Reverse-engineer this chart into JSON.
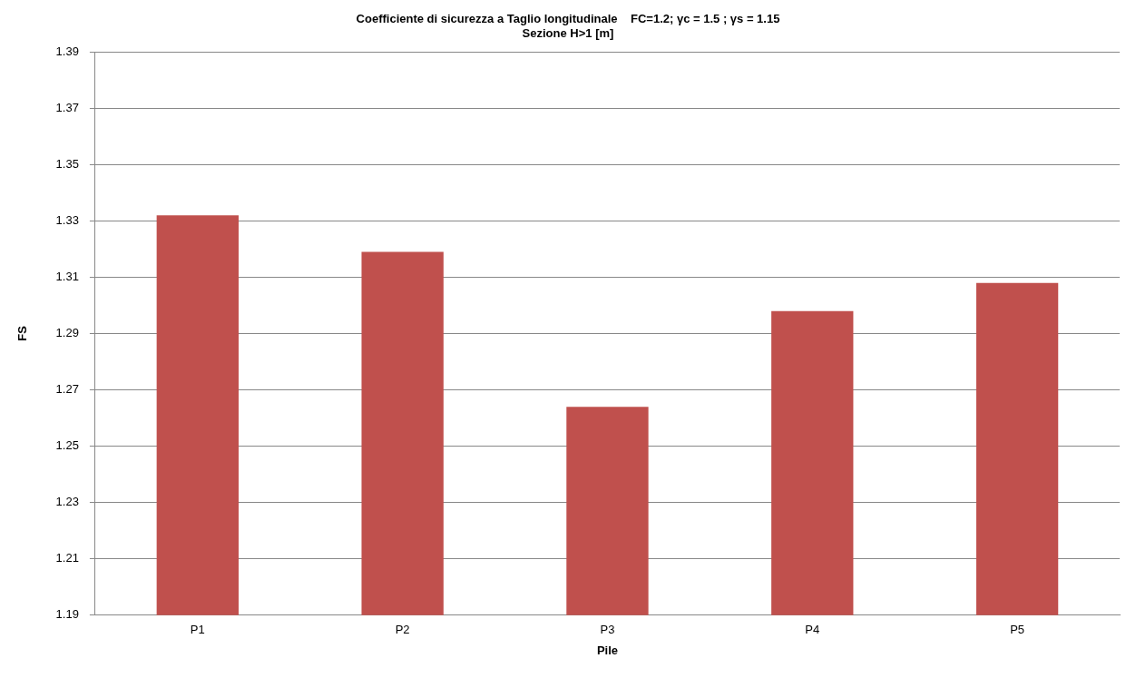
{
  "chart_data": {
    "type": "bar",
    "title": [
      "Coefficiente di sicurezza a Taglio longitudinale    FC=1.2; γc = 1.5 ; γs = 1.15",
      "Sezione H>1 [m]"
    ],
    "xlabel": "Pile",
    "ylabel": "FS",
    "categories": [
      "P1",
      "P2",
      "P3",
      "P4",
      "P5"
    ],
    "values": [
      1.332,
      1.319,
      1.264,
      1.298,
      1.308
    ],
    "color": "#c0504d",
    "ylim": [
      1.19,
      1.39
    ],
    "yticks": [
      1.19,
      1.21,
      1.23,
      1.25,
      1.27,
      1.29,
      1.31,
      1.33,
      1.35,
      1.37,
      1.39
    ],
    "grid": "y"
  }
}
